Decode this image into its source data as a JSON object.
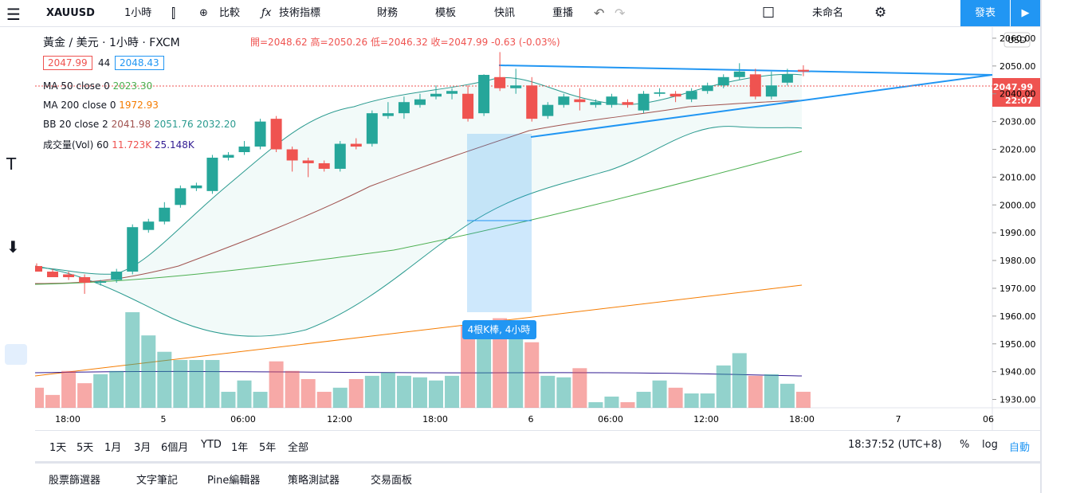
{
  "top_bar": {
    "symbol": "XAUUSD",
    "interval": "1小時",
    "compare": "比較",
    "indicators": "技術指標",
    "financials": "財務",
    "templates": "模板",
    "alerts": "快訊",
    "replay": "重播",
    "layout_name": "未命名",
    "publish": "發表"
  },
  "legend": {
    "title": "黃金 / 美元 · 1小時 · FXCM",
    "open": "開=2048.62",
    "high": "高=2050.26",
    "low": "低=2046.32",
    "close": "收=2047.99",
    "change": "-0.63 (-0.03%)",
    "bid": "2047.99",
    "spread": "44",
    "ask": "2048.43",
    "ma50": {
      "name": "MA 50 close 0",
      "value": "2023.30"
    },
    "ma200": {
      "name": "MA 200 close 0",
      "value": "1972.93"
    },
    "bb": {
      "name": "BB 20 close 2",
      "basis": "2041.98",
      "upper": "2051.76",
      "lower": "2032.20"
    },
    "volume": {
      "name": "成交量(Vol) 60",
      "value": "11.723K",
      "ma": "25.148K"
    }
  },
  "chart": {
    "currency": "USD",
    "last_price": "2047.99",
    "countdown": "22:07",
    "measure": "4根K棒, 4小時",
    "ylim": [
      1927,
      2064
    ],
    "yticks": [
      {
        "value": 2060,
        "label": "2060.00"
      },
      {
        "value": 2050,
        "label": "2050.00"
      },
      {
        "value": 2040,
        "label": "2040.00"
      },
      {
        "value": 2030,
        "label": "2030.00"
      },
      {
        "value": 2020,
        "label": "2020.00"
      },
      {
        "value": 2010,
        "label": "2010.00"
      },
      {
        "value": 2000,
        "label": "2000.00"
      },
      {
        "value": 1990,
        "label": "1990.00"
      },
      {
        "value": 1980,
        "label": "1980.00"
      },
      {
        "value": 1970,
        "label": "1970.00"
      },
      {
        "value": 1960,
        "label": "1960.00"
      },
      {
        "value": 1950,
        "label": "1950.00"
      },
      {
        "value": 1940,
        "label": "1940.00"
      },
      {
        "value": 1930,
        "label": "1930.00"
      }
    ],
    "time_labels": [
      "18:00",
      "5",
      "06:00",
      "12:00",
      "18:00",
      "6",
      "06:00",
      "12:00",
      "18:00",
      "7",
      "06"
    ],
    "candles": [
      {
        "o": 1978,
        "h": 1979,
        "l": 1976,
        "c": 1976,
        "v": 14.7
      },
      {
        "o": 1976,
        "h": 1977,
        "l": 1974,
        "c": 1974,
        "v": 9.4
      },
      {
        "o": 1975,
        "h": 1976,
        "l": 1973,
        "c": 1974,
        "v": 27
      },
      {
        "o": 1974,
        "h": 1975,
        "l": 1968,
        "c": 1972,
        "v": 18
      },
      {
        "o": 1972,
        "h": 1973,
        "l": 1971,
        "c": 1972.5,
        "v": 24.6
      },
      {
        "o": 1973,
        "h": 1977,
        "l": 1972,
        "c": 1976,
        "v": 27
      },
      {
        "o": 1976,
        "h": 1993,
        "l": 1975,
        "c": 1992,
        "v": 70
      },
      {
        "o": 1991,
        "h": 1995,
        "l": 1990,
        "c": 1994,
        "v": 53
      },
      {
        "o": 1994,
        "h": 2001,
        "l": 1993,
        "c": 1999,
        "v": 41
      },
      {
        "o": 2000,
        "h": 2007,
        "l": 1999,
        "c": 2006,
        "v": 35
      },
      {
        "o": 2006,
        "h": 2008,
        "l": 2005,
        "c": 2007,
        "v": 35
      },
      {
        "o": 2005,
        "h": 2018,
        "l": 2004,
        "c": 2017,
        "v": 35
      },
      {
        "o": 2017,
        "h": 2019,
        "l": 2016,
        "c": 2018,
        "v": 11.7
      },
      {
        "o": 2019,
        "h": 2023,
        "l": 2018,
        "c": 2021,
        "v": 20
      },
      {
        "o": 2021,
        "h": 2031,
        "l": 2020,
        "c": 2030,
        "v": 11.7
      },
      {
        "o": 2031,
        "h": 2032,
        "l": 2019,
        "c": 2020,
        "v": 34
      },
      {
        "o": 2020,
        "h": 2021,
        "l": 2012,
        "c": 2016,
        "v": 27
      },
      {
        "o": 2016,
        "h": 2017,
        "l": 2010,
        "c": 2015,
        "v": 21
      },
      {
        "o": 2015,
        "h": 2016,
        "l": 2012,
        "c": 2013,
        "v": 11.7
      },
      {
        "o": 2013,
        "h": 2023,
        "l": 2012,
        "c": 2022,
        "v": 14.7
      },
      {
        "o": 2022,
        "h": 2024,
        "l": 2020,
        "c": 2021,
        "v": 21
      },
      {
        "o": 2022,
        "h": 2034,
        "l": 2021,
        "c": 2033,
        "v": 23.4
      },
      {
        "o": 2032,
        "h": 2037,
        "l": 2031,
        "c": 2033,
        "v": 25.8
      },
      {
        "o": 2033,
        "h": 2039,
        "l": 2031,
        "c": 2037,
        "v": 23.4
      },
      {
        "o": 2036,
        "h": 2040,
        "l": 2035,
        "c": 2038,
        "v": 22.3
      },
      {
        "o": 2039,
        "h": 2043,
        "l": 2038,
        "c": 2040,
        "v": 20
      },
      {
        "o": 2040,
        "h": 2042,
        "l": 2038,
        "c": 2041,
        "v": 23.4
      },
      {
        "o": 2040,
        "h": 2043,
        "l": 2030,
        "c": 2031,
        "v": 60
      },
      {
        "o": 2033,
        "h": 2047,
        "l": 2032,
        "c": 2046.8,
        "v": 58.6
      },
      {
        "o": 2046,
        "h": 2055,
        "l": 2041,
        "c": 2042,
        "v": 65.6
      },
      {
        "o": 2042,
        "h": 2049,
        "l": 2040,
        "c": 2043,
        "v": 58.6
      },
      {
        "o": 2043,
        "h": 2046,
        "l": 2030,
        "c": 2031,
        "v": 48
      },
      {
        "o": 2032,
        "h": 2037,
        "l": 2031,
        "c": 2036,
        "v": 23.4
      },
      {
        "o": 2036,
        "h": 2040,
        "l": 2035,
        "c": 2039,
        "v": 22.3
      },
      {
        "o": 2038,
        "h": 2042,
        "l": 2034,
        "c": 2037,
        "v": 29
      },
      {
        "o": 2036,
        "h": 2038,
        "l": 2035,
        "c": 2037,
        "v": 4.1
      },
      {
        "o": 2036,
        "h": 2040,
        "l": 2035,
        "c": 2039,
        "v": 8.2
      },
      {
        "o": 2037,
        "h": 2038,
        "l": 2035,
        "c": 2036,
        "v": 4.1
      },
      {
        "o": 2034,
        "h": 2041,
        "l": 2033,
        "c": 2040,
        "v": 11.7
      },
      {
        "o": 2040,
        "h": 2042,
        "l": 2039,
        "c": 2040.5,
        "v": 20
      },
      {
        "o": 2040,
        "h": 2041,
        "l": 2037,
        "c": 2039,
        "v": 14.7
      },
      {
        "o": 2038,
        "h": 2042,
        "l": 2037,
        "c": 2041,
        "v": 10.5
      },
      {
        "o": 2041,
        "h": 2044,
        "l": 2040,
        "c": 2043,
        "v": 10.5
      },
      {
        "o": 2043,
        "h": 2047,
        "l": 2042,
        "c": 2046,
        "v": 31
      },
      {
        "o": 2046,
        "h": 2051,
        "l": 2045,
        "c": 2048,
        "v": 40
      },
      {
        "o": 2047,
        "h": 2049,
        "l": 2038,
        "c": 2039,
        "v": 23.4
      },
      {
        "o": 2039,
        "h": 2048,
        "l": 2038,
        "c": 2043,
        "v": 24.6
      },
      {
        "o": 2044,
        "h": 2049,
        "l": 2043,
        "c": 2047,
        "v": 17.6
      },
      {
        "o": 2048.62,
        "h": 2050.26,
        "l": 2046.32,
        "c": 2047.99,
        "v": 11.723
      }
    ]
  },
  "bottom_bar": {
    "ranges": [
      "1天",
      "5天",
      "1月",
      "3月",
      "6個月",
      "YTD",
      "1年",
      "5年",
      "全部"
    ],
    "clock": "18:37:52 (UTC+8)",
    "percent": "%",
    "log": "log",
    "auto": "自動"
  },
  "panel_tabs": [
    "股票篩選器",
    "文字筆記",
    "Pine編輯器",
    "策略測試器",
    "交易面板"
  ]
}
